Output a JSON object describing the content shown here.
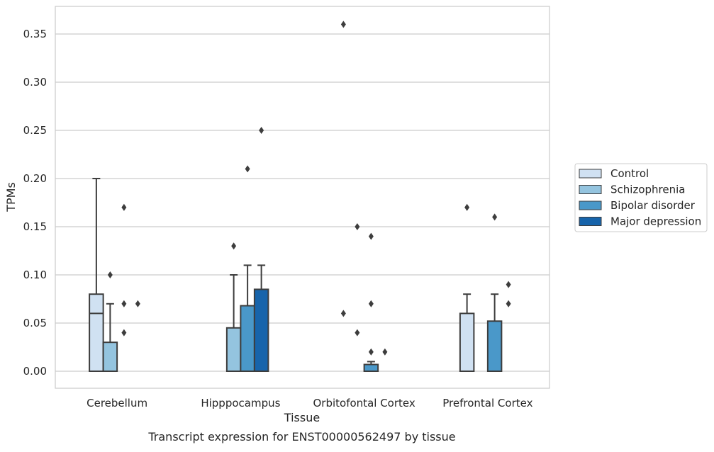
{
  "chart_data": {
    "type": "box",
    "title": "",
    "caption": "Transcript expression for ENST00000562497 by tissue",
    "xlabel": "Tissue",
    "ylabel": "TPMs",
    "ylim": [
      -0.018,
      0.38
    ],
    "yticks": [
      "0.00",
      "0.05",
      "0.10",
      "0.15",
      "0.20",
      "0.25",
      "0.30",
      "0.35"
    ],
    "ytick_values": [
      0,
      0.05,
      0.1,
      0.15,
      0.2,
      0.25,
      0.3,
      0.35
    ],
    "grid": true,
    "legend_position": "right",
    "categories": [
      "Cerebellum",
      "Hipppocampus",
      "Orbitofontal Cortex",
      "Prefrontal Cortex"
    ],
    "series": [
      {
        "name": "Control",
        "color": "#d0e1f2",
        "boxes": [
          {
            "q1": 0,
            "median": 0.06,
            "q3": 0.08,
            "whisker_low": 0,
            "whisker_high": 0.2,
            "outliers": []
          },
          {
            "q1": 0,
            "median": 0,
            "q3": 0,
            "whisker_low": 0,
            "whisker_high": 0,
            "outliers": []
          },
          {
            "q1": 0,
            "median": 0,
            "q3": 0,
            "whisker_low": 0,
            "whisker_high": 0,
            "outliers": [
              0.06,
              0.36
            ]
          },
          {
            "q1": 0,
            "median": 0,
            "q3": 0.06,
            "whisker_low": 0,
            "whisker_high": 0.08,
            "outliers": [
              0.17
            ]
          }
        ]
      },
      {
        "name": "Schizophrenia",
        "color": "#94c4df",
        "boxes": [
          {
            "q1": 0,
            "median": 0,
            "q3": 0.03,
            "whisker_low": 0,
            "whisker_high": 0.07,
            "outliers": [
              0.1
            ]
          },
          {
            "q1": 0,
            "median": 0,
            "q3": 0.045,
            "whisker_low": 0,
            "whisker_high": 0.1,
            "outliers": [
              0.13
            ]
          },
          {
            "q1": 0,
            "median": 0,
            "q3": 0,
            "whisker_low": 0,
            "whisker_high": 0,
            "outliers": [
              0.04,
              0.15
            ]
          },
          {
            "q1": 0,
            "median": 0,
            "q3": 0,
            "whisker_low": 0,
            "whisker_high": 0,
            "outliers": []
          }
        ]
      },
      {
        "name": "Bipolar disorder",
        "color": "#4a98c9",
        "boxes": [
          {
            "q1": 0,
            "median": 0,
            "q3": 0,
            "whisker_low": 0,
            "whisker_high": 0,
            "outliers": [
              0.04,
              0.07,
              0.17
            ]
          },
          {
            "q1": 0,
            "median": 0,
            "q3": 0.068,
            "whisker_low": 0,
            "whisker_high": 0.11,
            "outliers": [
              0.21
            ]
          },
          {
            "q1": 0,
            "median": 0,
            "q3": 0.007,
            "whisker_low": 0,
            "whisker_high": 0.01,
            "outliers": [
              0.02,
              0.07,
              0.14
            ]
          },
          {
            "q1": 0,
            "median": 0,
            "q3": 0.052,
            "whisker_low": 0,
            "whisker_high": 0.08,
            "outliers": [
              0.16
            ]
          }
        ]
      },
      {
        "name": "Major depression",
        "color": "#1764ab",
        "boxes": [
          {
            "q1": 0,
            "median": 0,
            "q3": 0,
            "whisker_low": 0,
            "whisker_high": 0,
            "outliers": [
              0.07
            ]
          },
          {
            "q1": 0,
            "median": 0,
            "q3": 0.085,
            "whisker_low": 0,
            "whisker_high": 0.11,
            "outliers": [
              0.25
            ]
          },
          {
            "q1": 0,
            "median": 0,
            "q3": 0,
            "whisker_low": 0,
            "whisker_high": 0,
            "outliers": [
              0.02
            ]
          },
          {
            "q1": 0,
            "median": 0,
            "q3": 0,
            "whisker_low": 0,
            "whisker_high": 0,
            "outliers": [
              0.07,
              0.09
            ]
          }
        ]
      }
    ]
  }
}
